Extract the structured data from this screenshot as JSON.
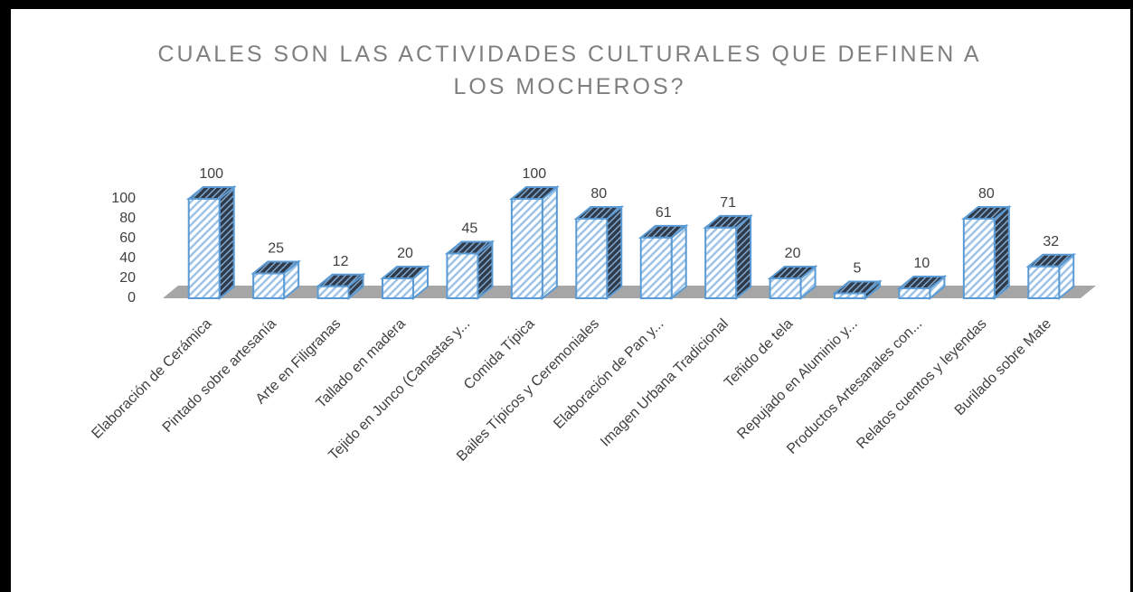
{
  "chart_data": {
    "type": "bar3d",
    "title": "CUALES SON LAS ACTIVIDADES CULTURALES QUE DEFINEN A LOS MOCHEROS?",
    "categories": [
      "Elaboración de Cerámica",
      "Pintado sobre artesanía",
      "Arte en Filigranas",
      "Tallado en madera",
      "Tejido en Junco (Canastas y...",
      "Comida Típica",
      "Bailes Típicos y Ceremoniales",
      "Elaboración de Pan y...",
      "Imagen Urbana Tradicional",
      "Teñido de tela",
      "Repujado en Aluminio y...",
      "Productos Artesanales con...",
      "Relatos cuentos y leyendas",
      "Burilado sobre Mate"
    ],
    "values": [
      100,
      25,
      12,
      20,
      45,
      100,
      80,
      61,
      71,
      20,
      5,
      10,
      80,
      32
    ],
    "color": "#5b9bd5",
    "ylim": [
      0,
      100
    ],
    "yticks": [
      0,
      20,
      40,
      60,
      80,
      100
    ],
    "grid": false
  }
}
